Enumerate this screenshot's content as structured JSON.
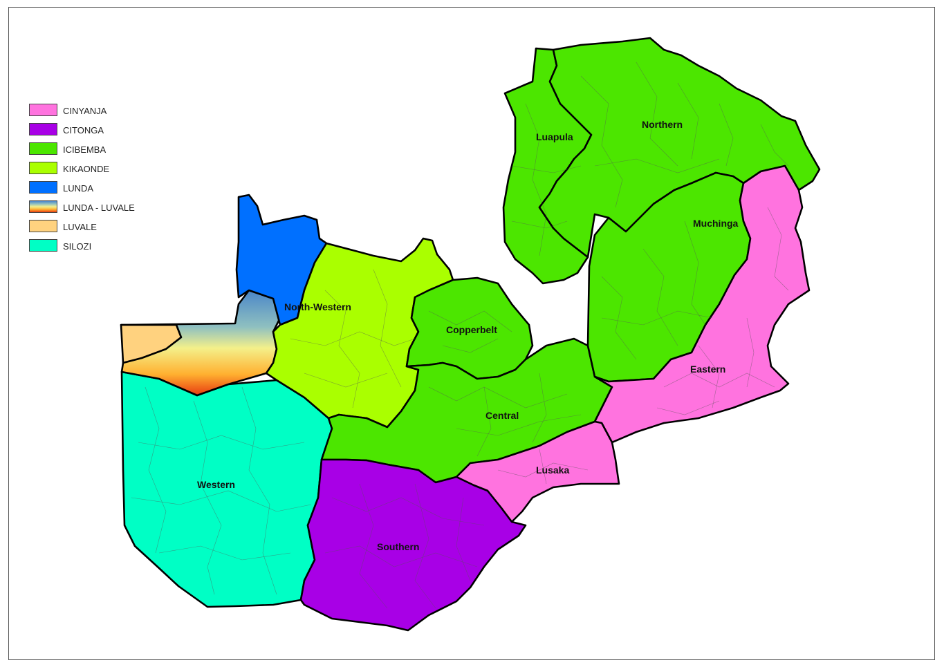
{
  "legend": {
    "items": [
      {
        "label": "CINYANJA",
        "color": "#ff73df"
      },
      {
        "label": "CITONGA",
        "color": "#a800e6"
      },
      {
        "label": "ICIBEMBA",
        "color": "#4ce600"
      },
      {
        "label": "KIKAONDE",
        "color": "#aaff00"
      },
      {
        "label": "LUNDA",
        "color": "#0070ff"
      },
      {
        "label": "LUNDA - LUVALE",
        "color": "gradient"
      },
      {
        "label": "LUVALE",
        "color": "#ffd27f"
      },
      {
        "label": "SILOZI",
        "color": "#00ffc5"
      }
    ]
  },
  "provinces": {
    "luapula": "Luapula",
    "northern": "Northern",
    "muchinga": "Muchinga",
    "north_western": "North-Western",
    "copperbelt": "Copperbelt",
    "eastern": "Eastern",
    "central": "Central",
    "lusaka": "Lusaka",
    "western": "Western",
    "southern": "Southern"
  }
}
